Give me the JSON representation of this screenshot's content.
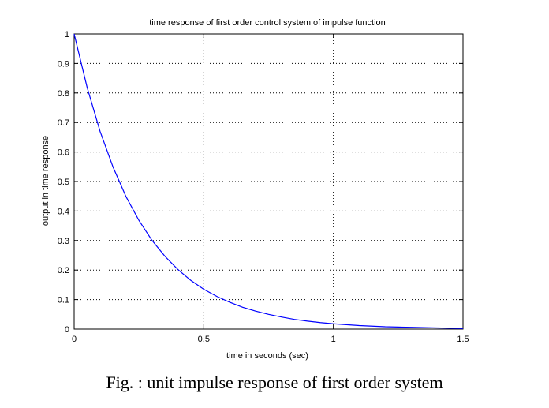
{
  "chart_data": {
    "type": "line",
    "title": "time response of first order control system of impulse function",
    "xlabel": "time in seconds (sec)",
    "ylabel": "output in time response",
    "xlim": [
      0,
      1.5
    ],
    "ylim": [
      0,
      1
    ],
    "xticks": [
      0,
      0.5,
      1,
      1.5
    ],
    "xtick_labels": [
      "0",
      "0.5",
      "1",
      "1.5"
    ],
    "yticks": [
      0,
      0.1,
      0.2,
      0.3,
      0.4,
      0.5,
      0.6,
      0.7,
      0.8,
      0.9,
      1
    ],
    "ytick_labels": [
      "0",
      "0.1",
      "0.2",
      "0.3",
      "0.4",
      "0.5",
      "0.6",
      "0.7",
      "0.8",
      "0.9",
      "1"
    ],
    "grid": true,
    "series": [
      {
        "color": "#0000ff",
        "x": [
          0,
          0.05,
          0.1,
          0.15,
          0.2,
          0.25,
          0.3,
          0.35,
          0.4,
          0.45,
          0.5,
          0.55,
          0.6,
          0.65,
          0.7,
          0.75,
          0.8,
          0.85,
          0.9,
          0.95,
          1.0,
          1.05,
          1.1,
          1.15,
          1.2,
          1.25,
          1.3,
          1.35,
          1.4,
          1.45,
          1.5
        ],
        "y": [
          1,
          0.819,
          0.67,
          0.549,
          0.449,
          0.368,
          0.301,
          0.247,
          0.202,
          0.165,
          0.135,
          0.111,
          0.091,
          0.074,
          0.061,
          0.05,
          0.041,
          0.033,
          0.027,
          0.022,
          0.018,
          0.015,
          0.012,
          0.01,
          0.008,
          0.007,
          0.006,
          0.005,
          0.004,
          0.003,
          0.002
        ]
      }
    ]
  },
  "caption": "Fig. : unit impulse response of first order system"
}
